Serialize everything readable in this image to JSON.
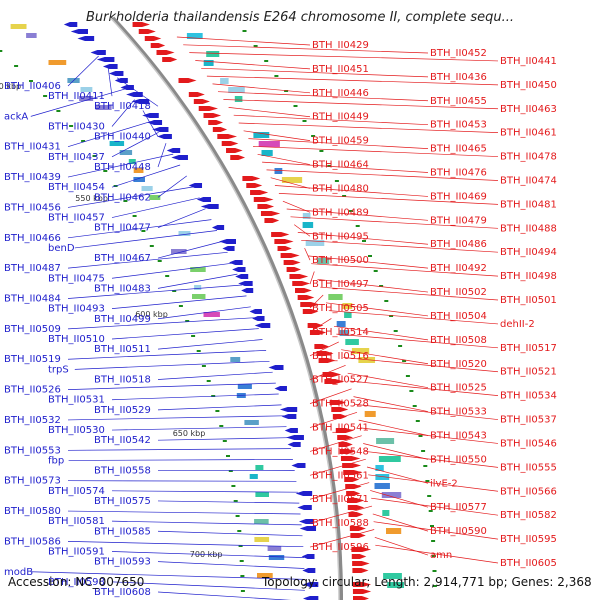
{
  "title": "Burkholderia thailandensis E264 chromosome II, complete sequ...",
  "accession": "Accession: NC_007650",
  "topology": "Topology: circular; Length: 2,914,771 bp; Genes: 2,368",
  "ruler_labels": [
    "500 kbp",
    "550 kbp",
    "600 kbp",
    "650 kbp",
    "700 kbp"
  ],
  "left_labels": [
    "BTH_II0406",
    "BTH_II0411",
    "BTH_II0418",
    "ackA",
    "BTH_II0430",
    "BTH_II0440",
    "BTH_II0431",
    "BTH_II0437",
    "BTH_II0448",
    "BTH_II0439",
    "BTH_II0454",
    "BTH_II0462",
    "BTH_II0456",
    "BTH_II0457",
    "BTH_II0477",
    "BTH_II0466",
    "benD",
    "BTH_II0467",
    "BTH_II0487",
    "BTH_II0475",
    "BTH_II0483",
    "BTH_II0484",
    "BTH_II0493",
    "BTH_II0499",
    "BTH_II0509",
    "BTH_II0510",
    "BTH_II0511",
    "BTH_II0519",
    "trpS",
    "BTH_II0518",
    "BTH_II0526",
    "BTH_II0531",
    "BTH_II0529",
    "BTH_II0532",
    "BTH_II0530",
    "BTH_II0542",
    "BTH_II0553",
    "fbp",
    "BTH_II0558",
    "BTH_II0573",
    "BTH_II0574",
    "BTH_II0575",
    "BTH_II0580",
    "BTH_II0581",
    "BTH_II0585",
    "BTH_II0586",
    "BTH_II0591",
    "BTH_II0593",
    "modB",
    "BTH_II0598",
    "BTH_II0608"
  ],
  "right_labels": [
    "BTH_II0429",
    "BTH_II0452",
    "BTH_II0441",
    "BTH_II0451",
    "BTH_II0436",
    "BTH_II0450",
    "BTH_II0446",
    "BTH_II0455",
    "BTH_II0463",
    "BTH_II0449",
    "BTH_II0453",
    "BTH_II0461",
    "BTH_II0459",
    "BTH_II0465",
    "BTH_II0478",
    "BTH_II0464",
    "BTH_II0476",
    "BTH_II0474",
    "BTH_II0480",
    "BTH_II0469",
    "BTH_II0481",
    "BTH_II0489",
    "BTH_II0479",
    "BTH_II0488",
    "BTH_II0495",
    "BTH_II0486",
    "BTH_II0494",
    "BTH_II0500",
    "BTH_II0492",
    "BTH_II0498",
    "BTH_II0497",
    "BTH_II0502",
    "BTH_II0501",
    "BTH_II0505",
    "BTH_II0504",
    "dehII-2",
    "BTH_II0514",
    "BTH_II0508",
    "BTH_II0517",
    "BTH_II0516",
    "BTH_II0520",
    "BTH_II0521",
    "BTH_II0527",
    "BTH_II0525",
    "BTH_II0534",
    "BTH_II0528",
    "BTH_II0533",
    "BTH_II0537",
    "BTH_II0541",
    "BTH_II0543",
    "BTH_II0546",
    "BTH_II0548",
    "BTH_II0550",
    "BTH_II0555",
    "BTH_II0561",
    "ilvE-2",
    "BTH_II0566",
    "BTH_II0571",
    "BTH_II0577",
    "BTH_II0582",
    "BTH_II0588",
    "BTH_II0590",
    "BTH_II0595",
    "BTH_II0596",
    "amn",
    "BTH_II0605"
  ],
  "colors": {
    "forward": "#e31a1c",
    "reverse": "#1f1fcc",
    "backbone": "#8a8a8a",
    "tick": "#1a8a1a"
  }
}
